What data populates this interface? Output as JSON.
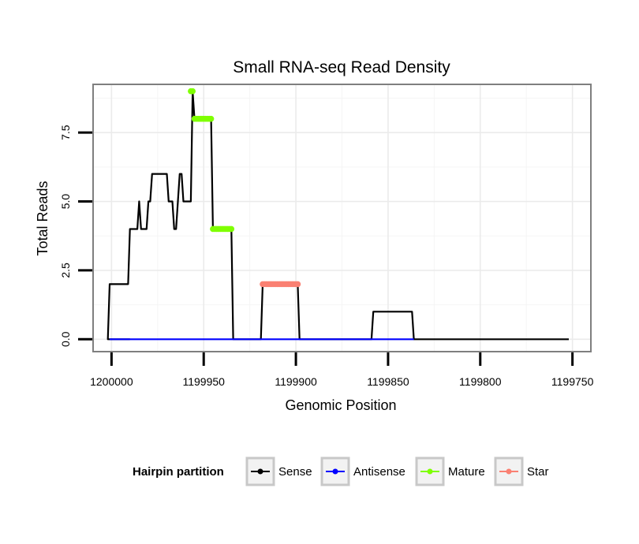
{
  "chart_data": {
    "type": "line",
    "title": "Small RNA-seq Read Density",
    "xlabel": "Genomic Position",
    "ylabel": "Total Reads",
    "xlim": [
      1200010,
      1199740
    ],
    "ylim": [
      -0.45,
      9.25
    ],
    "x_reversed": true,
    "grid": true,
    "x_ticks": [
      1200000,
      1199950,
      1199900,
      1199850,
      1199800,
      1199750
    ],
    "x_tick_labels": [
      "1200000",
      "1199950",
      "1199900",
      "1199850",
      "1199800",
      "1199750"
    ],
    "y_ticks": [
      0,
      2.5,
      5,
      7.5
    ],
    "y_tick_labels": [
      "0.0",
      "2.5",
      "5.0",
      "7.5"
    ],
    "legend": {
      "title": "Hairpin partition",
      "placement": "bottom",
      "entries": [
        {
          "name": "Sense",
          "color": "#000000"
        },
        {
          "name": "Antisense",
          "color": "#0000ff"
        },
        {
          "name": "Mature",
          "color": "#7fff00"
        },
        {
          "name": "Star",
          "color": "#fa8072"
        }
      ]
    },
    "series": [
      {
        "name": "Sense",
        "color": "#000000",
        "style": "line",
        "points": [
          [
            1199990,
            0
          ],
          [
            1200002,
            0
          ],
          [
            1200001,
            2
          ],
          [
            1199991,
            2
          ],
          [
            1199990,
            4
          ],
          [
            1199986,
            4
          ],
          [
            1199985,
            5
          ],
          [
            1199984,
            4
          ],
          [
            1199981,
            4
          ],
          [
            1199980,
            5
          ],
          [
            1199979,
            5
          ],
          [
            1199978,
            6
          ],
          [
            1199970,
            6
          ],
          [
            1199969,
            5
          ],
          [
            1199967,
            5
          ],
          [
            1199966,
            4
          ],
          [
            1199965,
            4
          ],
          [
            1199964,
            5
          ],
          [
            1199963,
            6
          ],
          [
            1199962,
            6
          ],
          [
            1199961,
            5
          ],
          [
            1199957,
            5
          ],
          [
            1199956,
            9
          ],
          [
            1199955,
            8
          ],
          [
            1199946,
            8
          ],
          [
            1199945,
            4
          ],
          [
            1199935,
            4
          ],
          [
            1199934,
            0
          ],
          [
            1199919,
            0
          ],
          [
            1199918,
            2
          ],
          [
            1199899,
            2
          ],
          [
            1199898,
            0
          ],
          [
            1199859,
            0
          ],
          [
            1199858,
            1
          ],
          [
            1199837,
            1
          ],
          [
            1199836,
            0
          ],
          [
            1199752,
            0
          ]
        ]
      },
      {
        "name": "Antisense",
        "color": "#0000ff",
        "style": "line",
        "points": [
          [
            1200001,
            0
          ],
          [
            1199935,
            0
          ],
          [
            1199919,
            0
          ],
          [
            1199898,
            0
          ],
          [
            1199859,
            0
          ],
          [
            1199836,
            0
          ]
        ]
      },
      {
        "name": "Mature",
        "color": "#7fff00",
        "style": "points",
        "points": [
          [
            1199957,
            9
          ],
          [
            1199956,
            9
          ],
          [
            1199955,
            8
          ],
          [
            1199954,
            8
          ],
          [
            1199953,
            8
          ],
          [
            1199952,
            8
          ],
          [
            1199951,
            8
          ],
          [
            1199950,
            8
          ],
          [
            1199949,
            8
          ],
          [
            1199948,
            8
          ],
          [
            1199947,
            8
          ],
          [
            1199946,
            8
          ],
          [
            1199945,
            4
          ],
          [
            1199944,
            4
          ],
          [
            1199943,
            4
          ],
          [
            1199942,
            4
          ],
          [
            1199941,
            4
          ],
          [
            1199940,
            4
          ],
          [
            1199939,
            4
          ],
          [
            1199938,
            4
          ],
          [
            1199937,
            4
          ],
          [
            1199936,
            4
          ],
          [
            1199935,
            4
          ]
        ]
      },
      {
        "name": "Star",
        "color": "#fa8072",
        "style": "points",
        "points": [
          [
            1199918,
            2
          ],
          [
            1199917,
            2
          ],
          [
            1199916,
            2
          ],
          [
            1199915,
            2
          ],
          [
            1199914,
            2
          ],
          [
            1199913,
            2
          ],
          [
            1199912,
            2
          ],
          [
            1199911,
            2
          ],
          [
            1199910,
            2
          ],
          [
            1199909,
            2
          ],
          [
            1199908,
            2
          ],
          [
            1199907,
            2
          ],
          [
            1199906,
            2
          ],
          [
            1199905,
            2
          ],
          [
            1199904,
            2
          ],
          [
            1199903,
            2
          ],
          [
            1199902,
            2
          ],
          [
            1199901,
            2
          ],
          [
            1199900,
            2
          ],
          [
            1199899,
            2
          ]
        ]
      }
    ]
  }
}
